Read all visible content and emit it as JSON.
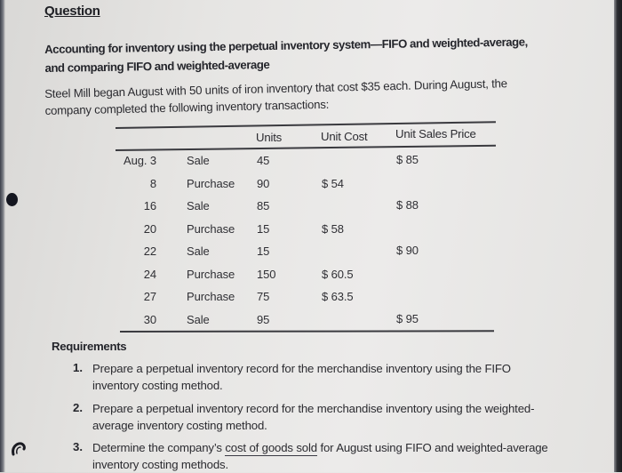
{
  "question_heading": "Question",
  "topic": {
    "line1": "Accounting for inventory using the perpetual inventory system—FIFO and weighted-average,",
    "line2": "and comparing FIFO and weighted-average"
  },
  "intro": {
    "line1": "Steel Mill began August with 50 units of iron inventory that cost $35 each. During August, the",
    "line2": "company completed the following inventory transactions:"
  },
  "table": {
    "headers": {
      "units": "Units",
      "unit_cost": "Unit Cost",
      "unit_sales_price": "Unit Sales Price"
    },
    "rows": [
      {
        "date": "Aug. 3",
        "type": "Sale",
        "units": "45",
        "unit_cost": "",
        "unit_sales_price": "$ 85"
      },
      {
        "date": "8",
        "type": "Purchase",
        "units": "90",
        "unit_cost": "$ 54",
        "unit_sales_price": ""
      },
      {
        "date": "16",
        "type": "Sale",
        "units": "85",
        "unit_cost": "",
        "unit_sales_price": "$ 88"
      },
      {
        "date": "20",
        "type": "Purchase",
        "units": "15",
        "unit_cost": "$ 58",
        "unit_sales_price": ""
      },
      {
        "date": "22",
        "type": "Sale",
        "units": "15",
        "unit_cost": "",
        "unit_sales_price": "$ 90"
      },
      {
        "date": "24",
        "type": "Purchase",
        "units": "150",
        "unit_cost": "$ 60.5",
        "unit_sales_price": ""
      },
      {
        "date": "27",
        "type": "Purchase",
        "units": "75",
        "unit_cost": "$ 63.5",
        "unit_sales_price": ""
      },
      {
        "date": "30",
        "type": "Sale",
        "units": "95",
        "unit_cost": "",
        "unit_sales_price": "$ 95"
      }
    ]
  },
  "requirements": {
    "heading": "Requirements",
    "items": [
      {
        "num": "1.",
        "line1": "Prepare a perpetual inventory record for the merchandise inventory using the FIFO",
        "line2": "inventory costing method."
      },
      {
        "num": "2.",
        "line1": "Prepare a perpetual inventory record for the merchandise inventory using the weighted-",
        "line2": "average inventory costing method."
      },
      {
        "num": "3.",
        "pre": "Determine the company’s ",
        "underlined": "cost of goods sold",
        "post": " for August using FIFO and weighted-average",
        "line2": "inventory costing methods."
      }
    ]
  },
  "icons": {
    "bullet": "filled-circle-icon",
    "curl": "curl-arrow-icon"
  }
}
